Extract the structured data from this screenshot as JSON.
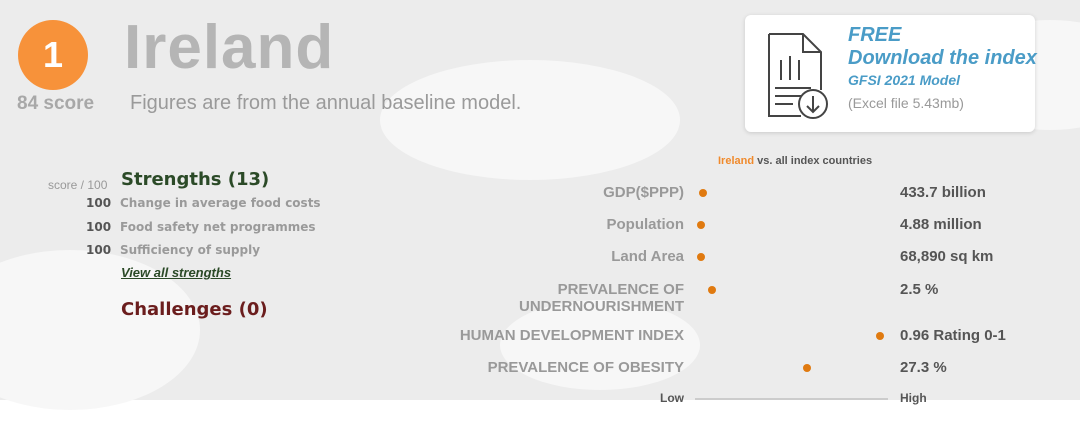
{
  "header": {
    "rank": "1",
    "country": "Ireland",
    "score": "84 score",
    "subtitle": "Figures are from the annual baseline model."
  },
  "download": {
    "free": "FREE",
    "title": "Download the index",
    "model": "GFSI 2021 Model",
    "file": "(Excel file 5.43mb)",
    "icon": "document-download-icon"
  },
  "strengths": {
    "score_label": "score / 100",
    "title": "Strengths (13)",
    "items": [
      {
        "score": "100",
        "label": "Change in average food costs"
      },
      {
        "score": "100",
        "label": "Food safety net programmes"
      },
      {
        "score": "100",
        "label": "Sufficiency of supply"
      }
    ],
    "view_all": "View all strengths"
  },
  "challenges": {
    "title": "Challenges (0)"
  },
  "comparison": {
    "country": "Ireland",
    "vs_text": " vs. all index countries",
    "low": "Low",
    "high": "High",
    "accent": "#e07a10",
    "indicators": [
      {
        "label": "GDP($PPP)",
        "value": "433.7 billion",
        "position": 0.04
      },
      {
        "label": "Population",
        "value": "4.88 million",
        "position": 0.03
      },
      {
        "label": "Land Area",
        "value": "68,890 sq km",
        "position": 0.03
      },
      {
        "label": "PREVALENCE OF UNDERNOURISHMENT",
        "value": "2.5 %",
        "position": 0.09
      },
      {
        "label": "HUMAN DEVELOPMENT INDEX",
        "value": "0.96 Rating 0-1",
        "position": 0.96
      },
      {
        "label": "PREVALENCE OF OBESITY",
        "value": "27.3 %",
        "position": 0.58
      }
    ]
  }
}
